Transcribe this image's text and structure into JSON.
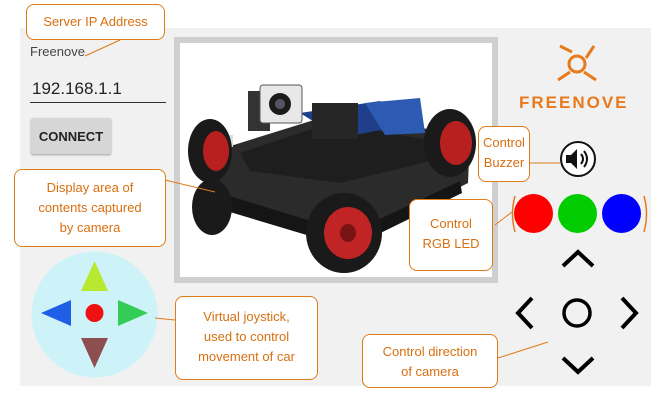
{
  "server": {
    "label": "Freenove",
    "ip_value": "192.168.1.1"
  },
  "connect_label": "CONNECT",
  "logo": {
    "text": "FREENOVE"
  },
  "callouts": {
    "server_ip": "Server IP Address",
    "display_area": [
      "Display area of",
      "contents captured",
      "by camera"
    ],
    "buzzer": [
      "Control",
      "Buzzer"
    ],
    "rgb_led": [
      "Control",
      "RGB LED"
    ],
    "joystick": [
      "Virtual joystick,",
      "used to control",
      "movement of car"
    ],
    "camera_dir": [
      "Control direction",
      "of camera"
    ]
  },
  "leds": [
    {
      "name": "red",
      "color": "#ff0000"
    },
    {
      "name": "green",
      "color": "#00cc00"
    },
    {
      "name": "blue",
      "color": "#0000ff"
    }
  ],
  "colors": {
    "accent": "#e87a1c",
    "joystick_bg": "#cdf3f8",
    "arrow_up": "#b8e830",
    "arrow_left": "#1f5fe8",
    "arrow_right": "#33cc55",
    "arrow_down": "#8c4e4e",
    "joystick_center": "#ee1111"
  }
}
